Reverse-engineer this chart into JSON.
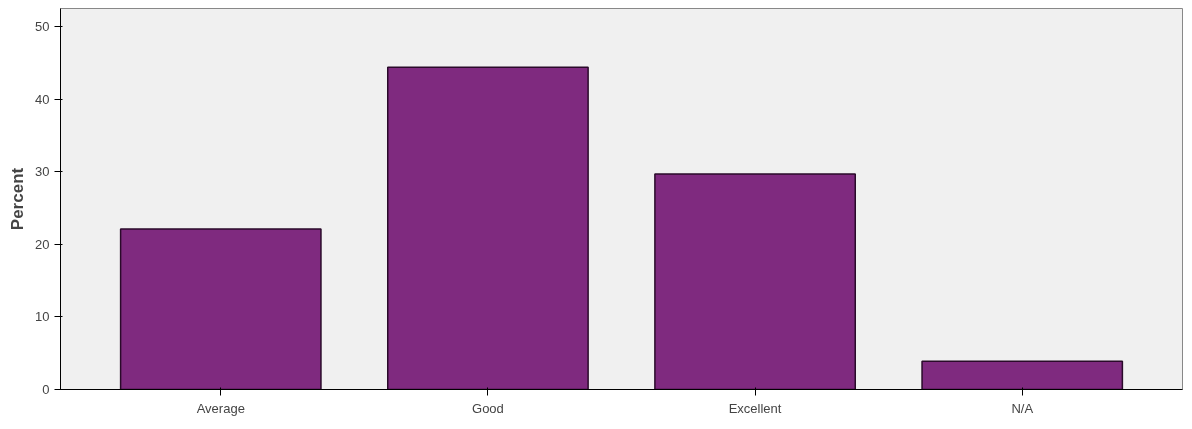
{
  "chart_data": {
    "type": "bar",
    "ylabel": "Percent",
    "categories": [
      "Average",
      "Good",
      "Excellent",
      "N/A"
    ],
    "values": [
      22.1,
      44.4,
      29.7,
      3.9
    ],
    "color": "#7f2a7f",
    "ylim": [
      0,
      52.5
    ],
    "yticks": [
      0,
      10,
      20,
      30,
      40,
      50
    ],
    "grid": false
  }
}
